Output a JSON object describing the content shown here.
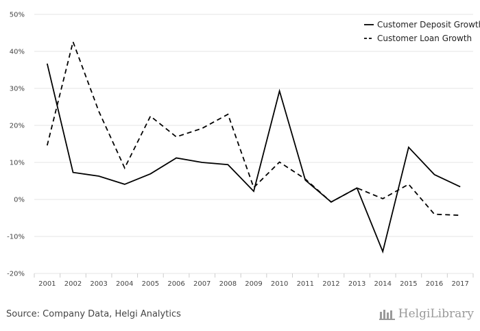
{
  "chart_data": {
    "type": "line",
    "title": "",
    "xlabel": "",
    "ylabel": "",
    "categories": [
      "2001",
      "2002",
      "2003",
      "2004",
      "2005",
      "2006",
      "2007",
      "2008",
      "2009",
      "2010",
      "2011",
      "2012",
      "2013",
      "2014",
      "2015",
      "2016",
      "2017"
    ],
    "ylim": [
      -20,
      50
    ],
    "yticks": [
      -20,
      -10,
      0,
      10,
      20,
      30,
      40,
      50
    ],
    "ytick_labels": [
      "-20%",
      "-10%",
      "0%",
      "10%",
      "20%",
      "30%",
      "40%",
      "50%"
    ],
    "grid": "horizontal",
    "legend_position": "top-right",
    "series": [
      {
        "name": "Customer Deposit Growth",
        "style": "solid",
        "color": "#000000",
        "values": [
          36.7,
          7.3,
          6.3,
          4.1,
          6.9,
          11.2,
          10.0,
          9.4,
          2.2,
          29.3,
          5.2,
          -0.7,
          3.1,
          -14.1,
          14.1,
          6.7,
          3.4
        ]
      },
      {
        "name": "Customer Loan Growth",
        "style": "dashed",
        "color": "#000000",
        "values": [
          14.6,
          42.6,
          23.8,
          8.5,
          22.5,
          16.9,
          19.2,
          23.0,
          3.2,
          10.1,
          5.5,
          -0.7,
          3.1,
          0.2,
          4.1,
          -4.0,
          -4.3
        ]
      }
    ]
  },
  "footer": {
    "source": "Source: Company Data, Helgi Analytics",
    "brand": "HelgiLibrary"
  },
  "colors": {
    "grid": "#e5e5e5",
    "text": "#444444",
    "line": "#000000",
    "brand": "#9a9a9a"
  }
}
